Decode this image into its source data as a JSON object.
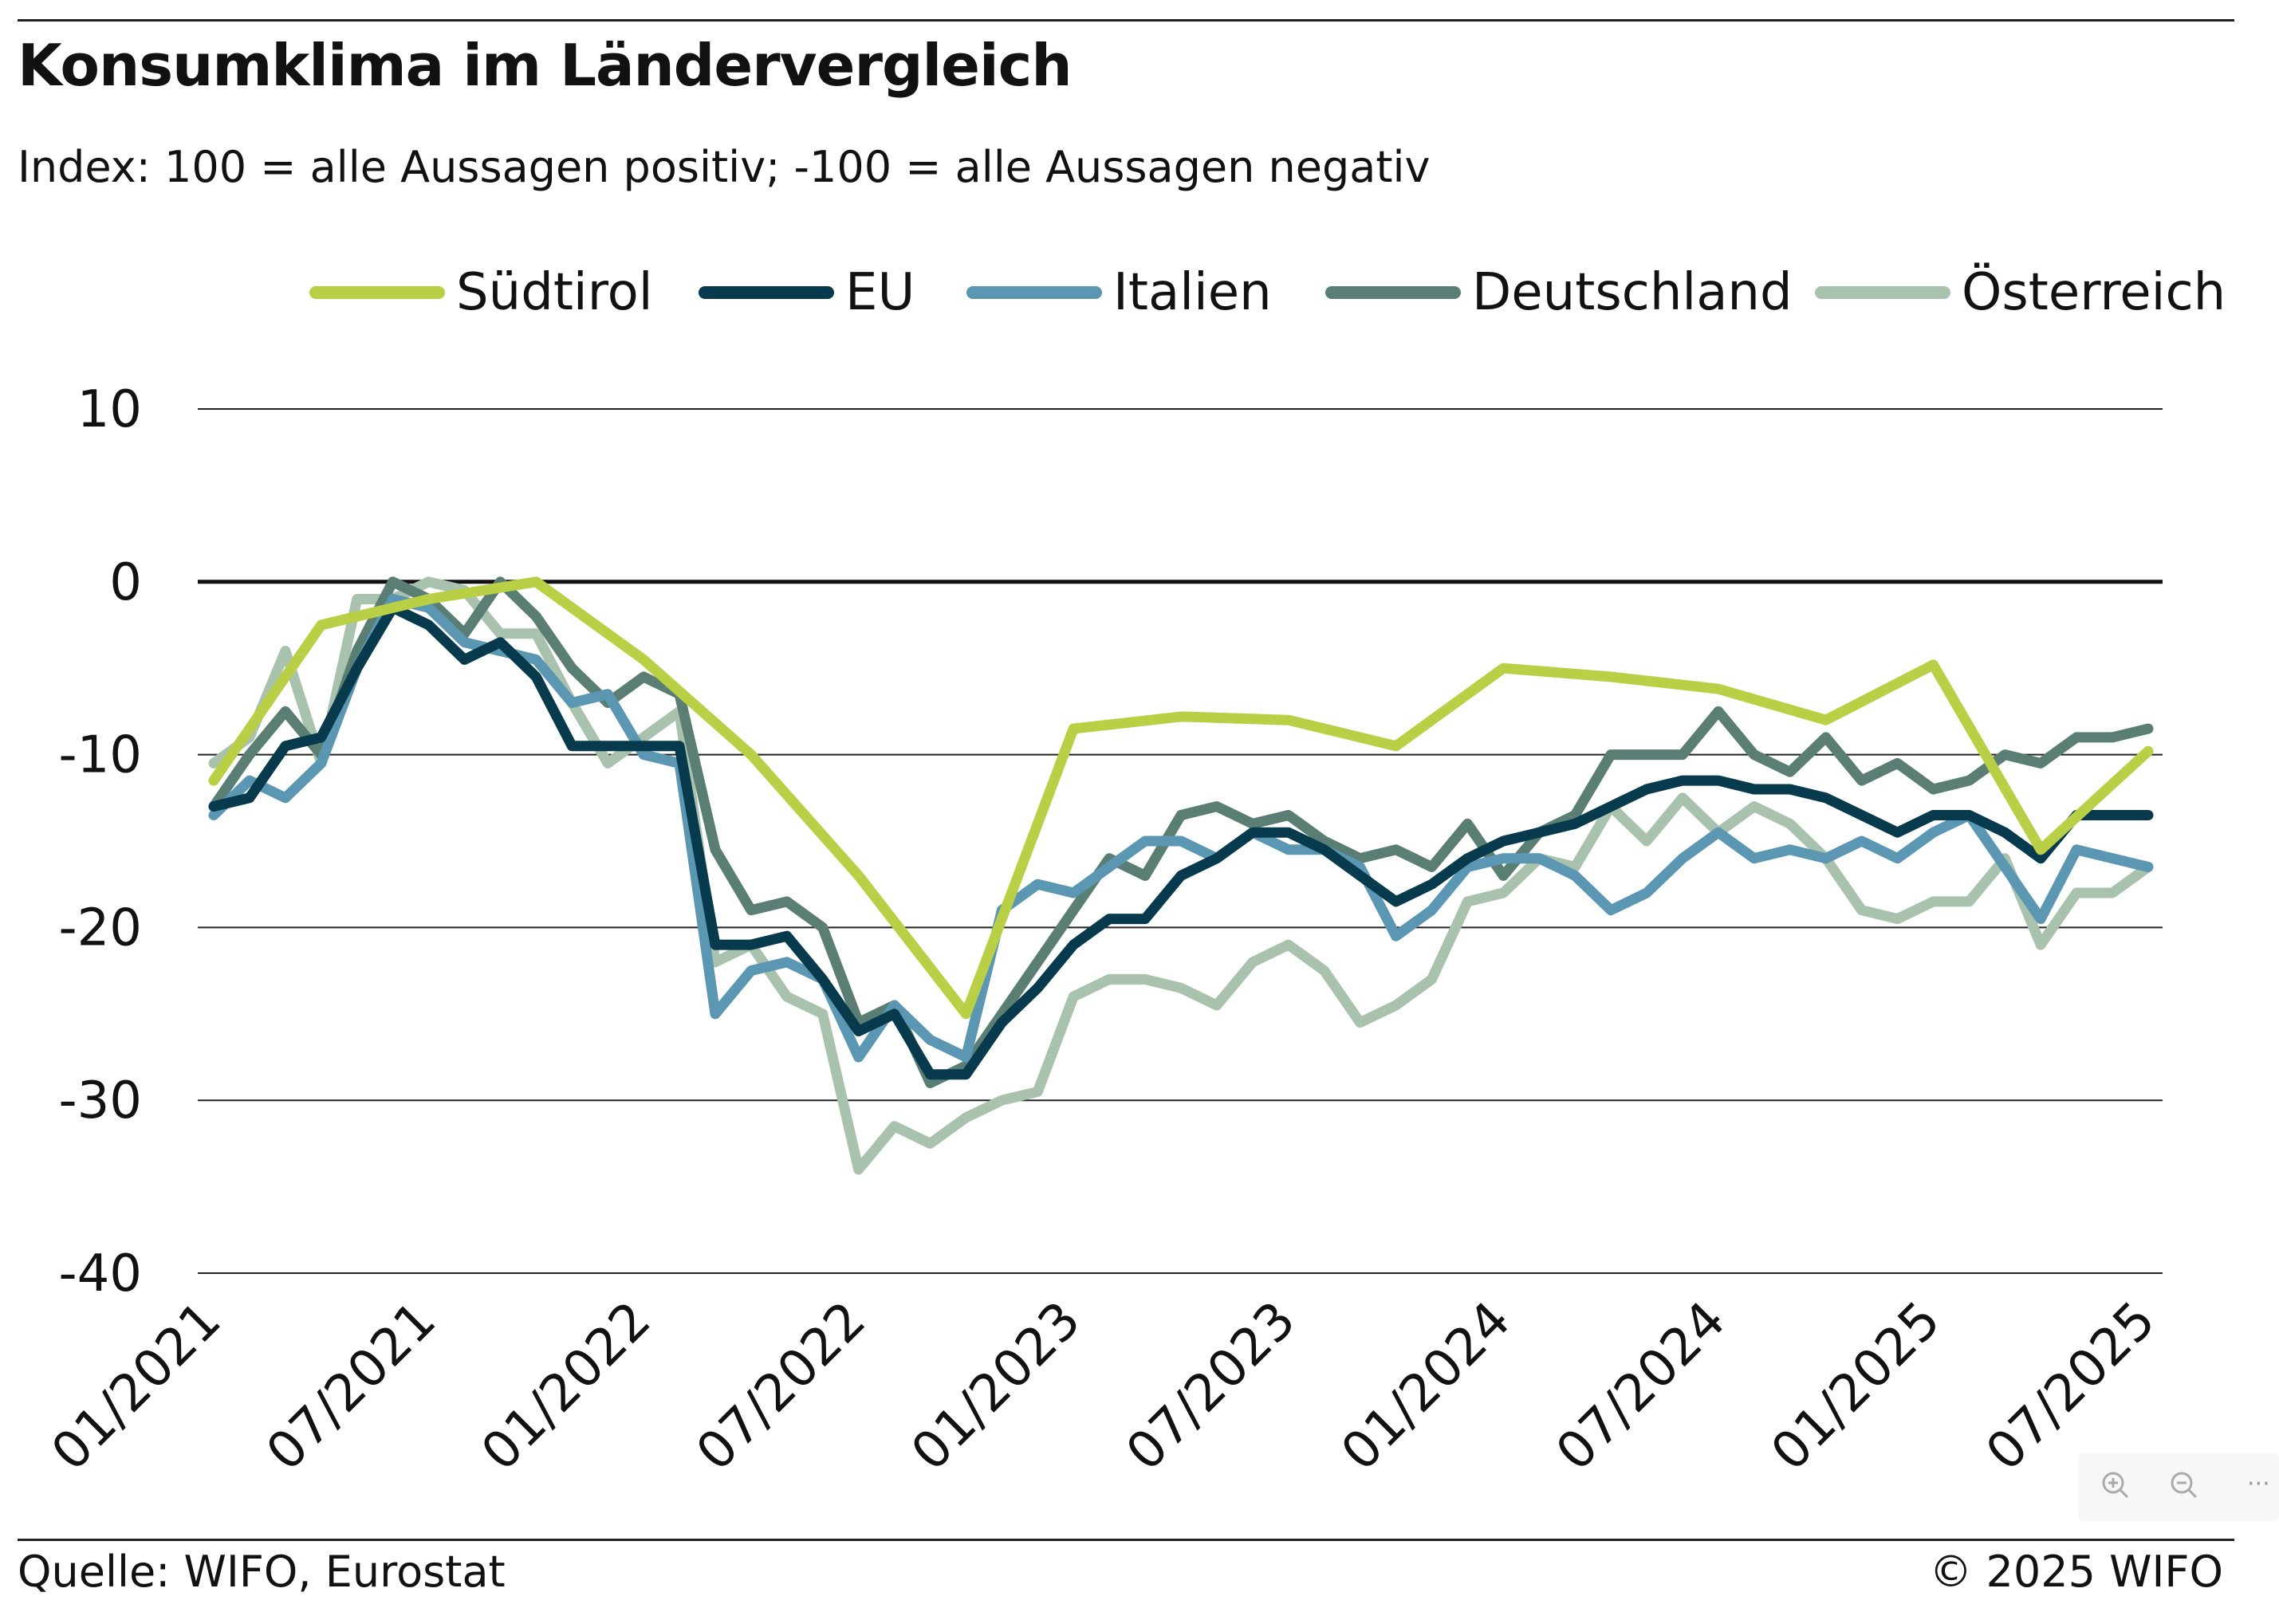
{
  "header": {
    "title": "Konsumklima im Ländervergleich",
    "subtitle": "Index: 100 = alle Aussagen positiv; -100 =  alle Aussagen negativ"
  },
  "footer": {
    "source": "Quelle: WIFO, Eurostat",
    "copyright": "© 2025 WIFO"
  },
  "controls": {
    "zoom_in_icon": "zoom-in-icon",
    "zoom_out_icon": "zoom-out-icon",
    "more_icon": "more-icon",
    "more_label": "···"
  },
  "chart_data": {
    "type": "line",
    "title": "Konsumklima im Ländervergleich",
    "subtitle": "Index: 100 = alle Aussagen positiv; -100 =  alle Aussagen negativ",
    "xlabel": "",
    "ylabel": "",
    "ylim": [
      -40,
      10
    ],
    "yticks": [
      10,
      0,
      -10,
      -20,
      -30,
      -40
    ],
    "xlim": [
      "01/2021",
      "07/2025"
    ],
    "xticks": [
      "01/2021",
      "07/2021",
      "01/2022",
      "07/2022",
      "01/2023",
      "07/2023",
      "01/2024",
      "07/2024",
      "01/2025",
      "07/2025"
    ],
    "grid": "horizontal",
    "zero_line": true,
    "legend_position": "top",
    "series": [
      {
        "name": "Südtirol",
        "color": "#b9cf45",
        "points": [
          [
            "01/2021",
            -11.5
          ],
          [
            "04/2021",
            -2.5
          ],
          [
            "07/2021",
            -1.0
          ],
          [
            "10/2021",
            0.0
          ],
          [
            "01/2022",
            -4.5
          ],
          [
            "04/2022",
            -10.0
          ],
          [
            "07/2022",
            -17.0
          ],
          [
            "10/2022",
            -25.0
          ],
          [
            "01/2023",
            -8.5
          ],
          [
            "04/2023",
            -7.8
          ],
          [
            "07/2023",
            -8.0
          ],
          [
            "10/2023",
            -9.5
          ],
          [
            "01/2024",
            -5.0
          ],
          [
            "04/2024",
            -5.5
          ],
          [
            "07/2024",
            -6.2
          ],
          [
            "10/2024",
            -8.0
          ],
          [
            "01/2025",
            -4.8
          ],
          [
            "04/2025",
            -15.5
          ],
          [
            "07/2025",
            -9.8
          ]
        ]
      },
      {
        "name": "EU",
        "color": "#083a4e",
        "points": [
          [
            "01/2021",
            -13.0
          ],
          [
            "02/2021",
            -12.5
          ],
          [
            "03/2021",
            -9.5
          ],
          [
            "04/2021",
            -9.0
          ],
          [
            "05/2021",
            -5.0
          ],
          [
            "06/2021",
            -1.5
          ],
          [
            "07/2021",
            -2.5
          ],
          [
            "08/2021",
            -4.5
          ],
          [
            "09/2021",
            -3.5
          ],
          [
            "10/2021",
            -5.5
          ],
          [
            "11/2021",
            -9.5
          ],
          [
            "12/2021",
            -9.5
          ],
          [
            "01/2022",
            -9.5
          ],
          [
            "02/2022",
            -9.5
          ],
          [
            "03/2022",
            -21.0
          ],
          [
            "04/2022",
            -21.0
          ],
          [
            "05/2022",
            -20.5
          ],
          [
            "06/2022",
            -23.0
          ],
          [
            "07/2022",
            -26.0
          ],
          [
            "08/2022",
            -25.0
          ],
          [
            "09/2022",
            -28.5
          ],
          [
            "10/2022",
            -28.5
          ],
          [
            "11/2022",
            -25.5
          ],
          [
            "12/2022",
            -23.5
          ],
          [
            "01/2023",
            -21.0
          ],
          [
            "02/2023",
            -19.5
          ],
          [
            "03/2023",
            -19.5
          ],
          [
            "04/2023",
            -17.0
          ],
          [
            "05/2023",
            -16.0
          ],
          [
            "06/2023",
            -14.5
          ],
          [
            "07/2023",
            -14.5
          ],
          [
            "08/2023",
            -15.5
          ],
          [
            "09/2023",
            -17.0
          ],
          [
            "10/2023",
            -18.5
          ],
          [
            "11/2023",
            -17.5
          ],
          [
            "12/2023",
            -16.0
          ],
          [
            "01/2024",
            -15.0
          ],
          [
            "02/2024",
            -14.5
          ],
          [
            "03/2024",
            -14.0
          ],
          [
            "04/2024",
            -13.0
          ],
          [
            "05/2024",
            -12.0
          ],
          [
            "06/2024",
            -11.5
          ],
          [
            "07/2024",
            -11.5
          ],
          [
            "08/2024",
            -12.0
          ],
          [
            "09/2024",
            -12.0
          ],
          [
            "10/2024",
            -12.5
          ],
          [
            "11/2024",
            -13.5
          ],
          [
            "12/2024",
            -14.5
          ],
          [
            "01/2025",
            -13.5
          ],
          [
            "02/2025",
            -13.5
          ],
          [
            "03/2025",
            -14.5
          ],
          [
            "04/2025",
            -16.0
          ],
          [
            "05/2025",
            -13.5
          ],
          [
            "06/2025",
            -13.5
          ],
          [
            "07/2025",
            -13.5
          ]
        ]
      },
      {
        "name": "Italien",
        "color": "#5b96b2",
        "points": [
          [
            "01/2021",
            -13.5
          ],
          [
            "02/2021",
            -11.5
          ],
          [
            "03/2021",
            -12.5
          ],
          [
            "04/2021",
            -10.5
          ],
          [
            "05/2021",
            -5.0
          ],
          [
            "06/2021",
            -1.0
          ],
          [
            "07/2021",
            -1.5
          ],
          [
            "08/2021",
            -3.5
          ],
          [
            "09/2021",
            -4.0
          ],
          [
            "10/2021",
            -4.5
          ],
          [
            "11/2021",
            -7.0
          ],
          [
            "12/2021",
            -6.5
          ],
          [
            "01/2022",
            -10.0
          ],
          [
            "02/2022",
            -10.5
          ],
          [
            "03/2022",
            -25.0
          ],
          [
            "04/2022",
            -22.5
          ],
          [
            "05/2022",
            -22.0
          ],
          [
            "06/2022",
            -23.0
          ],
          [
            "07/2022",
            -27.5
          ],
          [
            "08/2022",
            -24.5
          ],
          [
            "09/2022",
            -26.5
          ],
          [
            "10/2022",
            -27.5
          ],
          [
            "11/2022",
            -19.0
          ],
          [
            "12/2022",
            -17.5
          ],
          [
            "01/2023",
            -18.0
          ],
          [
            "02/2023",
            -16.5
          ],
          [
            "03/2023",
            -15.0
          ],
          [
            "04/2023",
            -15.0
          ],
          [
            "05/2023",
            -16.0
          ],
          [
            "06/2023",
            -14.5
          ],
          [
            "07/2023",
            -15.5
          ],
          [
            "08/2023",
            -15.5
          ],
          [
            "09/2023",
            -16.5
          ],
          [
            "10/2023",
            -20.5
          ],
          [
            "11/2023",
            -19.0
          ],
          [
            "12/2023",
            -16.5
          ],
          [
            "01/2024",
            -16.0
          ],
          [
            "02/2024",
            -16.0
          ],
          [
            "03/2024",
            -17.0
          ],
          [
            "04/2024",
            -19.0
          ],
          [
            "05/2024",
            -18.0
          ],
          [
            "06/2024",
            -16.0
          ],
          [
            "07/2024",
            -14.5
          ],
          [
            "08/2024",
            -16.0
          ],
          [
            "09/2024",
            -15.5
          ],
          [
            "10/2024",
            -16.0
          ],
          [
            "11/2024",
            -15.0
          ],
          [
            "12/2024",
            -16.0
          ],
          [
            "01/2025",
            -14.5
          ],
          [
            "02/2025",
            -13.5
          ],
          [
            "03/2025",
            -16.5
          ],
          [
            "04/2025",
            -19.5
          ],
          [
            "05/2025",
            -15.5
          ],
          [
            "06/2025",
            -16.0
          ],
          [
            "07/2025",
            -16.5
          ]
        ]
      },
      {
        "name": "Deutschland",
        "color": "#5a7e73",
        "points": [
          [
            "01/2021",
            -13.0
          ],
          [
            "02/2021",
            -10.0
          ],
          [
            "03/2021",
            -7.5
          ],
          [
            "04/2021",
            -10.0
          ],
          [
            "05/2021",
            -4.0
          ],
          [
            "06/2021",
            0.0
          ],
          [
            "07/2021",
            -1.0
          ],
          [
            "08/2021",
            -3.0
          ],
          [
            "09/2021",
            0.0
          ],
          [
            "10/2021",
            -2.0
          ],
          [
            "11/2021",
            -5.0
          ],
          [
            "12/2021",
            -7.0
          ],
          [
            "01/2022",
            -5.5
          ],
          [
            "02/2022",
            -6.5
          ],
          [
            "03/2022",
            -15.5
          ],
          [
            "04/2022",
            -19.0
          ],
          [
            "05/2022",
            -18.5
          ],
          [
            "06/2022",
            -20.0
          ],
          [
            "07/2022",
            -25.5
          ],
          [
            "08/2022",
            -24.5
          ],
          [
            "09/2022",
            -29.0
          ],
          [
            "10/2022",
            -28.0
          ],
          [
            "11/2022",
            -25.0
          ],
          [
            "12/2022",
            -22.0
          ],
          [
            "01/2023",
            -19.0
          ],
          [
            "02/2023",
            -16.0
          ],
          [
            "03/2023",
            -17.0
          ],
          [
            "04/2023",
            -13.5
          ],
          [
            "05/2023",
            -13.0
          ],
          [
            "06/2023",
            -14.0
          ],
          [
            "07/2023",
            -13.5
          ],
          [
            "08/2023",
            -15.0
          ],
          [
            "09/2023",
            -16.0
          ],
          [
            "10/2023",
            -15.5
          ],
          [
            "11/2023",
            -16.5
          ],
          [
            "12/2023",
            -14.0
          ],
          [
            "01/2024",
            -17.0
          ],
          [
            "02/2024",
            -14.5
          ],
          [
            "03/2024",
            -13.5
          ],
          [
            "04/2024",
            -10.0
          ],
          [
            "05/2024",
            -10.0
          ],
          [
            "06/2024",
            -10.0
          ],
          [
            "07/2024",
            -7.5
          ],
          [
            "08/2024",
            -10.0
          ],
          [
            "09/2024",
            -11.0
          ],
          [
            "10/2024",
            -9.0
          ],
          [
            "11/2024",
            -11.5
          ],
          [
            "12/2024",
            -10.5
          ],
          [
            "01/2025",
            -12.0
          ],
          [
            "02/2025",
            -11.5
          ],
          [
            "03/2025",
            -10.0
          ],
          [
            "04/2025",
            -10.5
          ],
          [
            "05/2025",
            -9.0
          ],
          [
            "06/2025",
            -9.0
          ],
          [
            "07/2025",
            -8.5
          ]
        ]
      },
      {
        "name": "Österreich",
        "color": "#a9c2ae",
        "points": [
          [
            "01/2021",
            -10.5
          ],
          [
            "02/2021",
            -9.0
          ],
          [
            "03/2021",
            -4.0
          ],
          [
            "04/2021",
            -10.5
          ],
          [
            "05/2021",
            -1.0
          ],
          [
            "06/2021",
            -1.0
          ],
          [
            "07/2021",
            0.0
          ],
          [
            "08/2021",
            -0.5
          ],
          [
            "09/2021",
            -3.0
          ],
          [
            "10/2021",
            -3.0
          ],
          [
            "11/2021",
            -7.0
          ],
          [
            "12/2021",
            -10.5
          ],
          [
            "01/2022",
            -9.0
          ],
          [
            "02/2022",
            -7.5
          ],
          [
            "03/2022",
            -22.0
          ],
          [
            "04/2022",
            -21.0
          ],
          [
            "05/2022",
            -24.0
          ],
          [
            "06/2022",
            -25.0
          ],
          [
            "07/2022",
            -34.0
          ],
          [
            "08/2022",
            -31.5
          ],
          [
            "09/2022",
            -32.5
          ],
          [
            "10/2022",
            -31.0
          ],
          [
            "11/2022",
            -30.0
          ],
          [
            "12/2022",
            -29.5
          ],
          [
            "01/2023",
            -24.0
          ],
          [
            "02/2023",
            -23.0
          ],
          [
            "03/2023",
            -23.0
          ],
          [
            "04/2023",
            -23.5
          ],
          [
            "05/2023",
            -24.5
          ],
          [
            "06/2023",
            -22.0
          ],
          [
            "07/2023",
            -21.0
          ],
          [
            "08/2023",
            -22.5
          ],
          [
            "09/2023",
            -25.5
          ],
          [
            "10/2023",
            -24.5
          ],
          [
            "11/2023",
            -23.0
          ],
          [
            "12/2023",
            -18.5
          ],
          [
            "01/2024",
            -18.0
          ],
          [
            "02/2024",
            -16.0
          ],
          [
            "03/2024",
            -16.5
          ],
          [
            "04/2024",
            -13.0
          ],
          [
            "05/2024",
            -15.0
          ],
          [
            "06/2024",
            -12.5
          ],
          [
            "07/2024",
            -14.5
          ],
          [
            "08/2024",
            -13.0
          ],
          [
            "09/2024",
            -14.0
          ],
          [
            "10/2024",
            -16.0
          ],
          [
            "11/2024",
            -19.0
          ],
          [
            "12/2024",
            -19.5
          ],
          [
            "01/2025",
            -18.5
          ],
          [
            "02/2025",
            -18.5
          ],
          [
            "03/2025",
            -16.0
          ],
          [
            "04/2025",
            -21.0
          ],
          [
            "05/2025",
            -18.0
          ],
          [
            "06/2025",
            -18.0
          ],
          [
            "07/2025",
            -16.5
          ]
        ]
      }
    ]
  }
}
